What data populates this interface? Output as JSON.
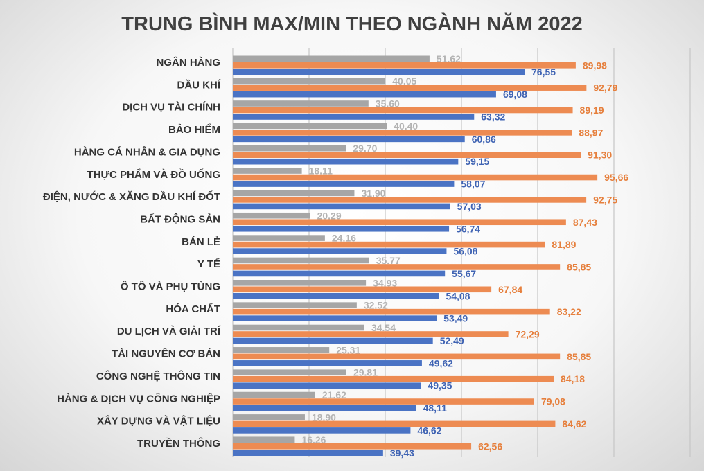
{
  "chart_data": {
    "type": "bar",
    "orientation": "horizontal",
    "title": "TRUNG BÌNH MAX/MIN THEO NGÀNH NĂM 2022",
    "xlabel": "",
    "ylabel": "",
    "xlim": [
      0,
      120
    ],
    "grid": true,
    "legend": "none",
    "categories": [
      "NGÂN HÀNG",
      "DẦU KHÍ",
      "DỊCH VỤ TÀI CHÍNH",
      "BẢO HIỂM",
      "HÀNG CÁ NHÂN & GIA DỤNG",
      "THỰC PHẨM VÀ ĐỒ UỐNG",
      "ĐIỆN, NƯỚC & XĂNG DẦU KHÍ ĐỐT",
      "BẤT ĐỘNG SẢN",
      "BÁN LẺ",
      "Y TẾ",
      "Ô TÔ VÀ PHỤ TÙNG",
      "HÓA CHẤT",
      "DU LỊCH VÀ GIẢI TRÍ",
      "TÀI NGUYÊN CƠ BẢN",
      "CÔNG NGHỆ THÔNG TIN",
      "HÀNG & DỊCH VỤ CÔNG NGHIỆP",
      "XÂY DỰNG VÀ VẬT LIỆU",
      "TRUYỀN THÔNG"
    ],
    "series": [
      {
        "color": "#a6a6a6",
        "values": [
          51.62,
          40.05,
          35.6,
          40.4,
          29.7,
          18.11,
          31.9,
          20.29,
          24.16,
          35.77,
          34.93,
          32.52,
          34.54,
          25.31,
          29.81,
          21.62,
          18.9,
          16.26
        ],
        "labels": [
          "51.62",
          "40.05",
          "35.60",
          "40.40",
          "29.70",
          "18.11",
          "31.90",
          "20.29",
          "24.16",
          "35.77",
          "34.93",
          "32.52",
          "34.54",
          "25.31",
          "29.81",
          "21.62",
          "18.90",
          "16.26"
        ]
      },
      {
        "color": "#ed8b52",
        "values": [
          89.98,
          92.79,
          89.19,
          88.97,
          91.3,
          95.66,
          92.75,
          87.43,
          81.89,
          85.85,
          67.84,
          83.22,
          72.29,
          85.85,
          84.18,
          79.08,
          84.62,
          62.56
        ],
        "labels": [
          "89,98",
          "92,79",
          "89,19",
          "88,97",
          "91,30",
          "95,66",
          "92,75",
          "87,43",
          "81,89",
          "85,85",
          "67,84",
          "83,22",
          "72,29",
          "85,85",
          "84,18",
          "79,08",
          "84,62",
          "62,56"
        ]
      },
      {
        "color": "#4a73c4",
        "values": [
          76.55,
          69.08,
          63.32,
          60.86,
          59.15,
          58.07,
          57.03,
          56.74,
          56.08,
          55.67,
          54.08,
          53.49,
          52.49,
          49.62,
          49.35,
          48.11,
          46.62,
          39.43
        ],
        "labels": [
          "76,55",
          "69,08",
          "63,32",
          "60,86",
          "59,15",
          "58,07",
          "57,03",
          "56,74",
          "56,08",
          "55,67",
          "54,08",
          "53,49",
          "52,49",
          "49,62",
          "49,35",
          "48,11",
          "46,62",
          "39,43"
        ]
      }
    ],
    "label_colors": [
      "#b3b3b3",
      "#e67f3c",
      "#3f63b3"
    ],
    "grid_color": "#c6c6c6"
  }
}
